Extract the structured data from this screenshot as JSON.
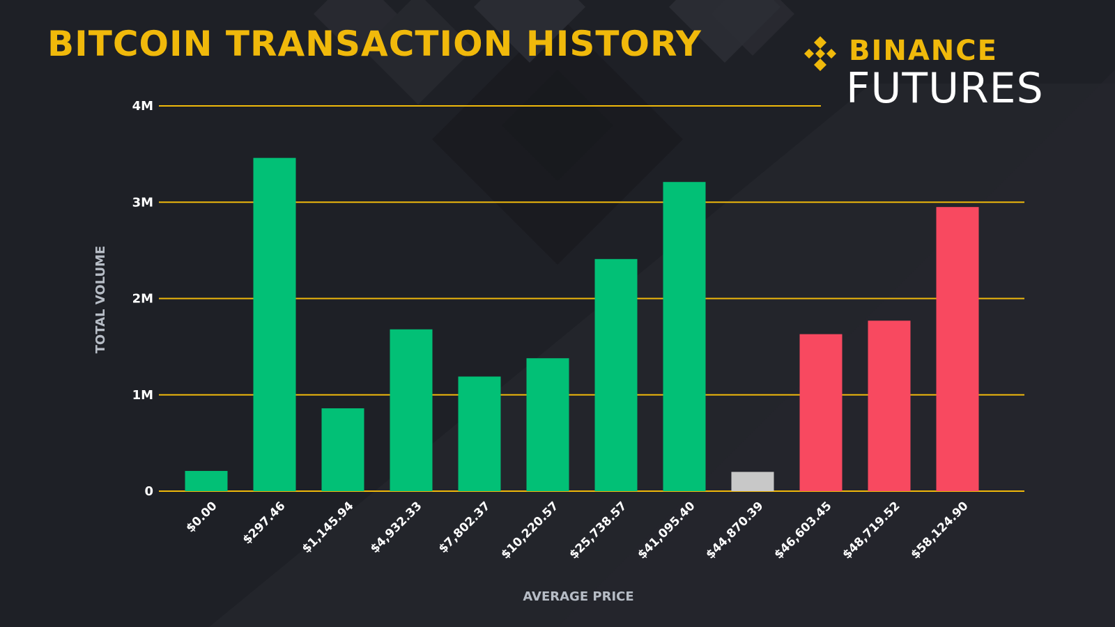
{
  "header": {
    "title": "BITCOIN TRANSACTION HISTORY"
  },
  "brand": {
    "name": "BINANCE",
    "product": "FUTURES",
    "logo_icon": "binance-diamond-logo"
  },
  "colors": {
    "background": "#1e2026",
    "accent": "#f0b90b",
    "gridline": "#f0b90b",
    "bar_green": "#02c076",
    "bar_gray": "#c8c8c8",
    "bar_red": "#f84960"
  },
  "chart_data": {
    "type": "bar",
    "title": "BITCOIN TRANSACTION HISTORY",
    "xlabel": "AVERAGE PRICE",
    "ylabel": "TOTAL VOLUME",
    "ylim": [
      0,
      4000000
    ],
    "yticks": [
      0,
      1000000,
      2000000,
      3000000,
      4000000
    ],
    "ytick_labels": [
      "0",
      "1M",
      "2M",
      "3M",
      "4M"
    ],
    "grid": true,
    "categories": [
      "$0.00",
      "$297.46",
      "$1,145.94",
      "$4,932.33",
      "$7,802.37",
      "$10,220.57",
      "$25,738.57",
      "$41,095.40",
      "$44,870.39",
      "$46,603.45",
      "$48,719.52",
      "$58,124.90"
    ],
    "values": [
      210000,
      3460000,
      860000,
      1680000,
      1190000,
      1380000,
      2410000,
      3210000,
      200000,
      1630000,
      1770000,
      2950000
    ],
    "bar_colors": [
      "#02c076",
      "#02c076",
      "#02c076",
      "#02c076",
      "#02c076",
      "#02c076",
      "#02c076",
      "#02c076",
      "#c8c8c8",
      "#f84960",
      "#f84960",
      "#f84960"
    ]
  }
}
